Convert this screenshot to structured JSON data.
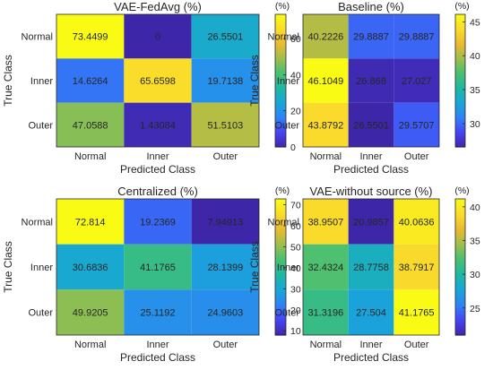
{
  "chart_data": [
    {
      "type": "heatmap",
      "title": "VAE-FedAvg (%)",
      "xlabel": "Predicted Class",
      "ylabel": "True Class",
      "x_categories": [
        "Normal",
        "Inner",
        "Outer"
      ],
      "y_categories": [
        "Normal",
        "Inner",
        "Outer"
      ],
      "values": [
        [
          "73.4499",
          "0",
          "26.5501"
        ],
        [
          "14.6264",
          "65.6598",
          "19.7138"
        ],
        [
          "47.0588",
          "1.43084",
          "51.5103"
        ]
      ],
      "colorbar": {
        "label": "(%)",
        "range": [
          0,
          73.4499
        ],
        "ticks": [
          "0",
          "20",
          "40",
          "60"
        ]
      }
    },
    {
      "type": "heatmap",
      "title": "Baseline (%)",
      "xlabel": "Predicted Class",
      "ylabel": "True Class",
      "x_categories": [
        "Normal",
        "Inner",
        "Outer"
      ],
      "y_categories": [
        "Normal",
        "Inner",
        "Outer"
      ],
      "values": [
        [
          "40.2226",
          "29.8887",
          "29.8887"
        ],
        [
          "46.1049",
          "26.868",
          "27.027"
        ],
        [
          "43.8792",
          "26.5501",
          "29.5707"
        ]
      ],
      "colorbar": {
        "label": "(%)",
        "range": [
          26.5501,
          46.1049
        ],
        "ticks": [
          "30",
          "35",
          "40",
          "45"
        ]
      }
    },
    {
      "type": "heatmap",
      "title": "Centralized (%)",
      "xlabel": "Predicted Class",
      "ylabel": "True Class",
      "x_categories": [
        "Normal",
        "Inner",
        "Outer"
      ],
      "y_categories": [
        "Normal",
        "Inner",
        "Outer"
      ],
      "values": [
        [
          "72.814",
          "19.2369",
          "7.94913"
        ],
        [
          "30.6836",
          "41.1765",
          "28.1399"
        ],
        [
          "49.9205",
          "25.1192",
          "24.9603"
        ]
      ],
      "colorbar": {
        "label": "(%)",
        "range": [
          7.94913,
          72.814
        ],
        "ticks": [
          "10",
          "20",
          "30",
          "40",
          "50",
          "60",
          "70"
        ]
      }
    },
    {
      "type": "heatmap",
      "title": "VAE-without source (%)",
      "xlabel": "Predicted Class",
      "ylabel": "True Class",
      "x_categories": [
        "Normal",
        "Inner",
        "Outer"
      ],
      "y_categories": [
        "Normal",
        "Inner",
        "Outer"
      ],
      "values": [
        [
          "38.9507",
          "20.9857",
          "40.0636"
        ],
        [
          "32.4324",
          "28.7758",
          "38.7917"
        ],
        [
          "31.3196",
          "27.504",
          "41.1765"
        ]
      ],
      "colorbar": {
        "label": "(%)",
        "range": [
          20.9857,
          41.1765
        ],
        "ticks": [
          "25",
          "30",
          "35",
          "40"
        ]
      }
    }
  ],
  "colormap": [
    "#3e26a8",
    "#4743f4",
    "#2f82f6",
    "#18a6d8",
    "#1fb7a3",
    "#46c073",
    "#9cbe4d",
    "#eaba30",
    "#fadb2b",
    "#f9fb15"
  ]
}
